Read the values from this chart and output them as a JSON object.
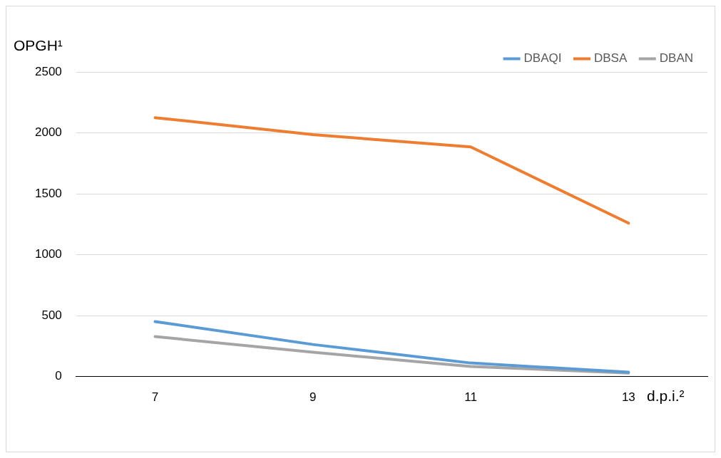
{
  "chart_data": {
    "type": "line",
    "xlabel": "d.p.i.²",
    "ylabel": "OPGH¹",
    "categories": [
      "7",
      "9",
      "11",
      "13"
    ],
    "series": [
      {
        "name": "DBAQI",
        "color": "#5b9bd5",
        "values": [
          451,
          263,
          111,
          35
        ]
      },
      {
        "name": "DBSA",
        "color": "#ed7d31",
        "values": [
          2125,
          1985,
          1885,
          1259
        ]
      },
      {
        "name": "DBAN",
        "color": "#a5a5a5",
        "values": [
          328,
          199,
          82,
          29
        ]
      }
    ],
    "ylim": [
      0,
      2500
    ],
    "yticks": [
      0,
      500,
      1000,
      1500,
      2000,
      2500
    ],
    "grid": "y",
    "legend": "top right",
    "marker": "none",
    "line_style": "solid"
  }
}
